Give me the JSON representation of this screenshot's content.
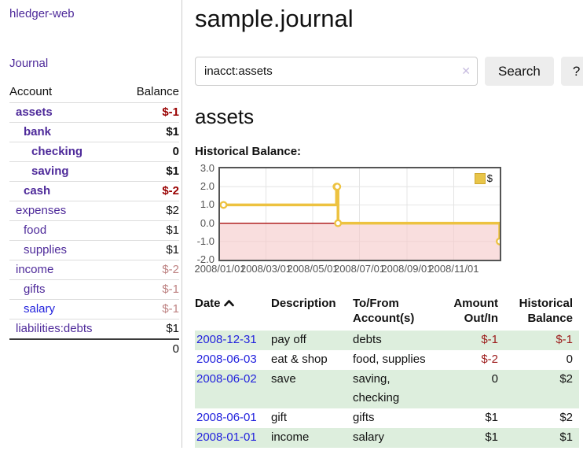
{
  "sidebar": {
    "brand": "hledger-web",
    "nav": {
      "journal": "Journal"
    },
    "accounts_table": {
      "headers": {
        "account": "Account",
        "balance": "Balance"
      },
      "rows": [
        {
          "name": "assets",
          "balance": "$-1",
          "indent": 1,
          "bold": true,
          "negative": "strong"
        },
        {
          "name": "bank",
          "balance": "$1",
          "indent": 2,
          "bold": true,
          "negative": "none"
        },
        {
          "name": "checking",
          "balance": "0",
          "indent": 3,
          "bold": true,
          "negative": "none"
        },
        {
          "name": "saving",
          "balance": "$1",
          "indent": 3,
          "bold": true,
          "negative": "none"
        },
        {
          "name": "cash",
          "balance": "$-2",
          "indent": 2,
          "bold": true,
          "negative": "strong"
        },
        {
          "name": "expenses",
          "balance": "$2",
          "indent": 1,
          "bold": false,
          "negative": "none"
        },
        {
          "name": "food",
          "balance": "$1",
          "indent": 2,
          "bold": false,
          "negative": "none"
        },
        {
          "name": "supplies",
          "balance": "$1",
          "indent": 2,
          "bold": false,
          "negative": "none"
        },
        {
          "name": "income",
          "balance": "$-2",
          "indent": 1,
          "bold": false,
          "negative": "muted"
        },
        {
          "name": "gifts",
          "balance": "$-1",
          "indent": 2,
          "bold": false,
          "negative": "muted"
        },
        {
          "name": "salary",
          "balance": "$-1",
          "indent": 2,
          "bold": false,
          "negative": "muted",
          "link_color": "blue"
        },
        {
          "name": "liabilities:debts",
          "balance": "$1",
          "indent": 1,
          "bold": false,
          "negative": "none"
        }
      ],
      "total": "0"
    }
  },
  "header": {
    "title": "sample.journal"
  },
  "search": {
    "query": "inacct:assets",
    "clear_icon": "✕",
    "button": "Search",
    "help_button": "?"
  },
  "account_page": {
    "title": "assets",
    "chart_label": "Historical Balance:"
  },
  "chart_data": {
    "type": "line",
    "title": "Historical Balance:",
    "step": true,
    "xlim_days": [
      0,
      365
    ],
    "ylim": [
      -2,
      3
    ],
    "grid": true,
    "legend": {
      "label": "$",
      "position": "top-right"
    },
    "colors": {
      "line": "#edc240",
      "marker_fill": "#ffffff",
      "negative_region": "#f6caca",
      "zero_line": "#a40000",
      "grid": "#e4e4e4",
      "border": "#545454"
    },
    "series": [
      {
        "name": "$",
        "points": [
          {
            "date": "2008-01-01",
            "day": 0,
            "value": 1
          },
          {
            "date": "2008-06-01",
            "day": 152,
            "value": 2
          },
          {
            "date": "2008-06-02",
            "day": 153,
            "value": 2
          },
          {
            "date": "2008-06-03",
            "day": 154,
            "value": 0
          },
          {
            "date": "2008-12-31",
            "day": 365,
            "value": -1
          }
        ]
      }
    ],
    "xticks": [
      {
        "label": "2008/01/01",
        "day": 0
      },
      {
        "label": "2008/03/01",
        "day": 60
      },
      {
        "label": "2008/05/01",
        "day": 121
      },
      {
        "label": "2008/07/01",
        "day": 182
      },
      {
        "label": "2008/09/01",
        "day": 244
      },
      {
        "label": "2008/11/01",
        "day": 305
      }
    ],
    "yticks": [
      "3.0",
      "2.0",
      "1.0",
      "0.0",
      "-1.0",
      "-2.0"
    ]
  },
  "register_table": {
    "headers": {
      "date": "Date",
      "sort": "ascending",
      "description": "Description",
      "accounts": "To/From Account(s)",
      "amount": "Amount Out/In",
      "balance": "Historical Balance"
    },
    "rows": [
      {
        "date": "2008-12-31",
        "description": "pay off",
        "accounts": "debts",
        "amount": "$-1",
        "amount_negative": true,
        "balance": "$-1",
        "balance_negative": true
      },
      {
        "date": "2008-06-03",
        "description": "eat & shop",
        "accounts": "food, supplies",
        "amount": "$-2",
        "amount_negative": true,
        "balance": "0",
        "balance_negative": false
      },
      {
        "date": "2008-06-02",
        "description": "save",
        "accounts": "saving, checking",
        "amount": "0",
        "amount_negative": false,
        "balance": "$2",
        "balance_negative": false
      },
      {
        "date": "2008-06-01",
        "description": "gift",
        "accounts": "gifts",
        "amount": "$1",
        "amount_negative": false,
        "balance": "$2",
        "balance_negative": false
      },
      {
        "date": "2008-01-01",
        "description": "income",
        "accounts": "salary",
        "amount": "$1",
        "amount_negative": false,
        "balance": "$1",
        "balance_negative": false
      }
    ]
  }
}
